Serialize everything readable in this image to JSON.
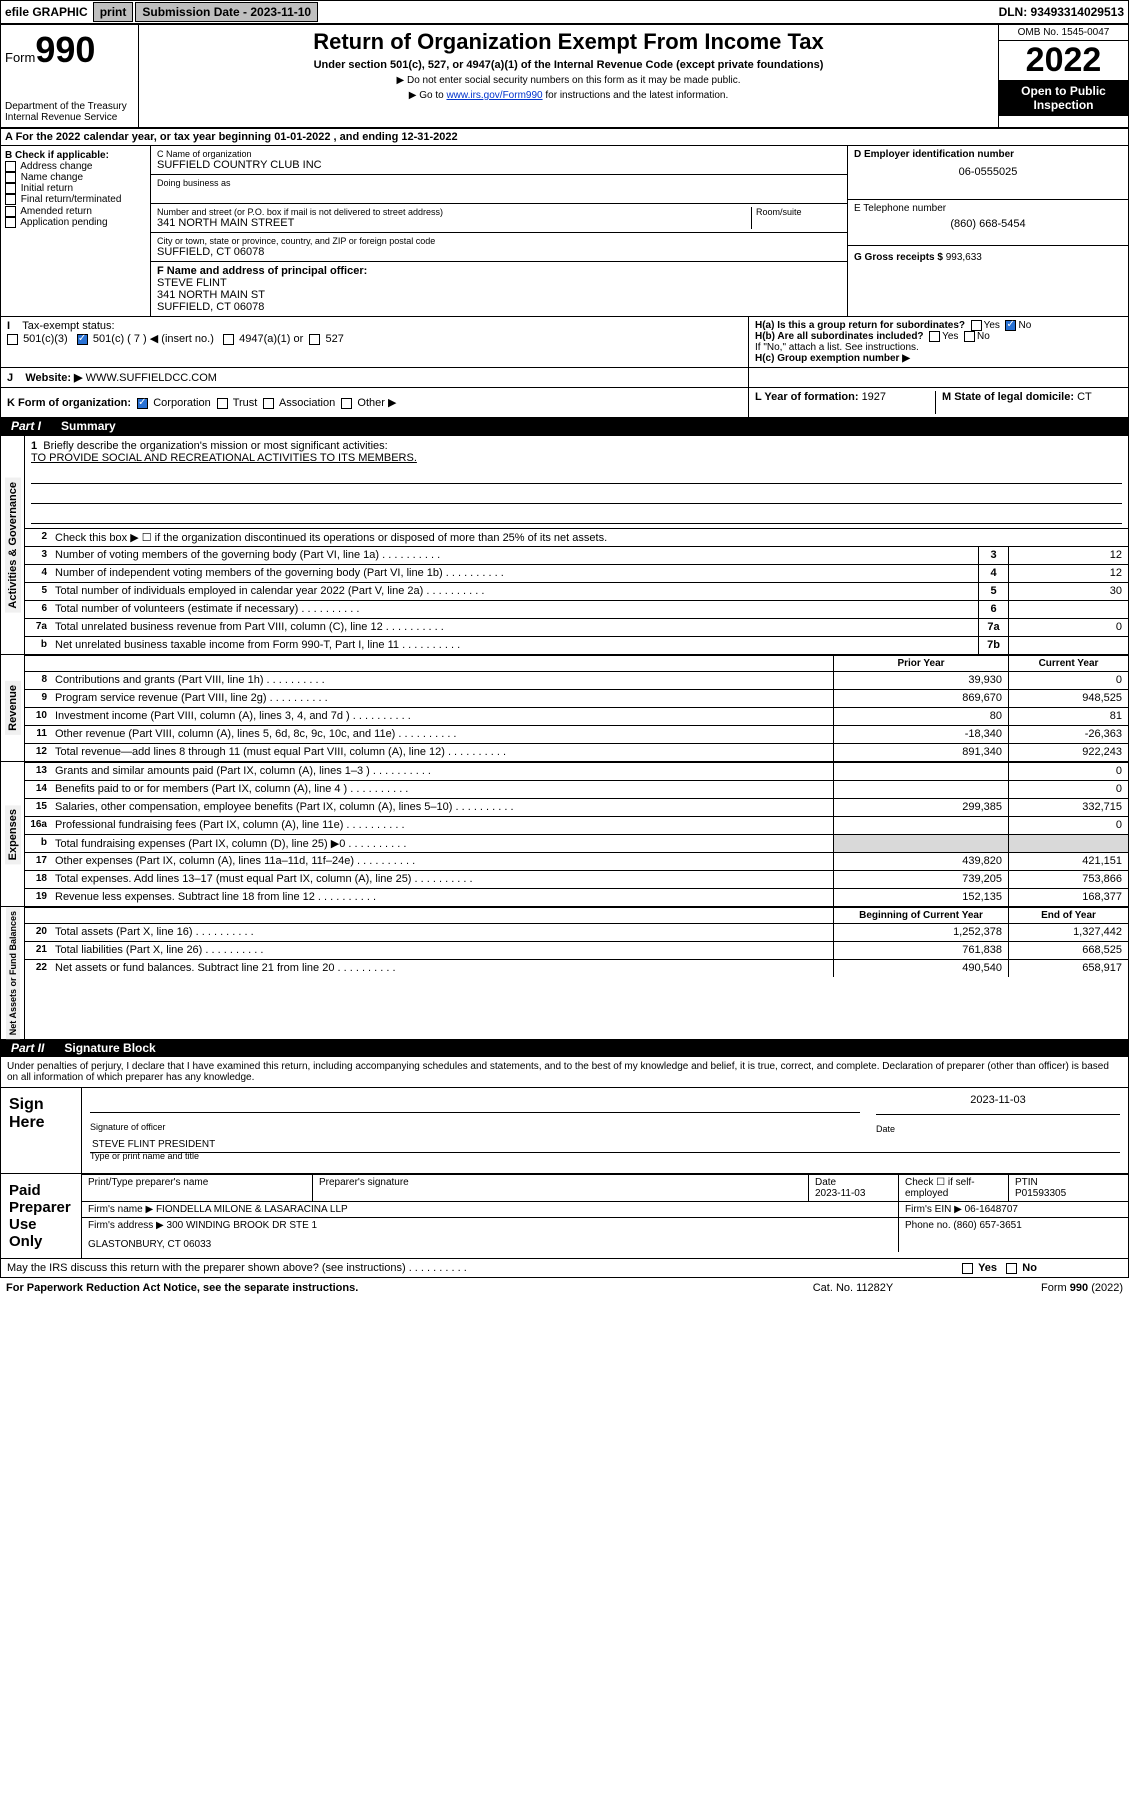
{
  "topbar": {
    "efile_label": "efile GRAPHIC",
    "print_btn": "print",
    "subdate_label": "Submission Date - 2023-11-10",
    "dln_label": "DLN: 93493314029513"
  },
  "header": {
    "form_prefix": "Form",
    "form_num": "990",
    "dept": "Department of the Treasury",
    "irs": "Internal Revenue Service",
    "title": "Return of Organization Exempt From Income Tax",
    "sub1": "Under section 501(c), 527, or 4947(a)(1) of the Internal Revenue Code (except private foundations)",
    "sub2": "▶ Do not enter social security numbers on this form as it may be made public.",
    "sub3_pre": "▶ Go to ",
    "sub3_link": "www.irs.gov/Form990",
    "sub3_post": " for instructions and the latest information.",
    "omb": "OMB No. 1545-0047",
    "year": "2022",
    "otp": "Open to Public Inspection"
  },
  "row_a": "A For the 2022 calendar year, or tax year beginning 01-01-2022    , and ending 12-31-2022",
  "col_b": {
    "hdr": "B Check if applicable:",
    "items": [
      "Address change",
      "Name change",
      "Initial return",
      "Final return/terminated",
      "Amended return",
      "Application pending"
    ]
  },
  "col_c": {
    "name_lbl": "C Name of organization",
    "name": "SUFFIELD COUNTRY CLUB INC",
    "dba_lbl": "Doing business as",
    "street_lbl": "Number and street (or P.O. box if mail is not delivered to street address)",
    "room_lbl": "Room/suite",
    "street": "341 NORTH MAIN STREET",
    "city_lbl": "City or town, state or province, country, and ZIP or foreign postal code",
    "city": "SUFFIELD, CT  06078",
    "f_lbl": "F Name and address of principal officer:",
    "f_name": "STEVE FLINT",
    "f_street": "341 NORTH MAIN ST",
    "f_city": "SUFFIELD, CT  06078"
  },
  "col_d": {
    "ein_lbl": "D Employer identification number",
    "ein": "06-0555025",
    "tel_lbl": "E Telephone number",
    "tel": "(860) 668-5454",
    "gross_lbl": "G Gross receipts $ ",
    "gross": "993,633"
  },
  "h": {
    "ha_q": "H(a)  Is this a group return for subordinates?",
    "hb_q": "H(b)  Are all subordinates included?",
    "ifno": "If \"No,\" attach a list. See instructions.",
    "hc": "H(c)  Group exemption number ▶",
    "yes": "Yes",
    "no": "No"
  },
  "checks": {
    "i_lbl": "Tax-exempt status:",
    "i_501c3": "501(c)(3)",
    "i_501c": "501(c) ( 7 ) ◀ (insert no.)",
    "i_4947": "4947(a)(1) or",
    "i_527": "527",
    "j_lbl": "Website: ▶",
    "j_val": "WWW.SUFFIELDCC.COM",
    "k_lbl": "K Form of organization:",
    "k_corp": "Corporation",
    "k_trust": "Trust",
    "k_assoc": "Association",
    "k_other": "Other ▶",
    "l_lbl": "L Year of formation: ",
    "l_val": "1927",
    "m_lbl": "M State of legal domicile: ",
    "m_val": "CT"
  },
  "part1": {
    "num": "Part I",
    "title": "Summary"
  },
  "brief": {
    "num": "1",
    "q": "Briefly describe the organization's mission or most significant activities:",
    "a": "TO PROVIDE SOCIAL AND RECREATIONAL ACTIVITIES TO ITS MEMBERS."
  },
  "line2": {
    "num": "2",
    "txt": "Check this box ▶ ☐  if the organization discontinued its operations or disposed of more than 25% of its net assets."
  },
  "gov_rows": [
    {
      "n": "3",
      "d": "Number of voting members of the governing body (Part VI, line 1a)",
      "c": "3",
      "v": "12"
    },
    {
      "n": "4",
      "d": "Number of independent voting members of the governing body (Part VI, line 1b)",
      "c": "4",
      "v": "12"
    },
    {
      "n": "5",
      "d": "Total number of individuals employed in calendar year 2022 (Part V, line 2a)",
      "c": "5",
      "v": "30"
    },
    {
      "n": "6",
      "d": "Total number of volunteers (estimate if necessary)",
      "c": "6",
      "v": ""
    },
    {
      "n": "7a",
      "d": "Total unrelated business revenue from Part VIII, column (C), line 12",
      "c": "7a",
      "v": "0"
    },
    {
      "n": "b",
      "d": "Net unrelated business taxable income from Form 990-T, Part I, line 11",
      "c": "7b",
      "v": ""
    }
  ],
  "rev_hdr": {
    "a": "Prior Year",
    "b": "Current Year"
  },
  "rev_rows": [
    {
      "n": "8",
      "d": "Contributions and grants (Part VIII, line 1h)",
      "a": "39,930",
      "b": "0"
    },
    {
      "n": "9",
      "d": "Program service revenue (Part VIII, line 2g)",
      "a": "869,670",
      "b": "948,525"
    },
    {
      "n": "10",
      "d": "Investment income (Part VIII, column (A), lines 3, 4, and 7d )",
      "a": "80",
      "b": "81"
    },
    {
      "n": "11",
      "d": "Other revenue (Part VIII, column (A), lines 5, 6d, 8c, 9c, 10c, and 11e)",
      "a": "-18,340",
      "b": "-26,363"
    },
    {
      "n": "12",
      "d": "Total revenue—add lines 8 through 11 (must equal Part VIII, column (A), line 12)",
      "a": "891,340",
      "b": "922,243"
    }
  ],
  "exp_rows": [
    {
      "n": "13",
      "d": "Grants and similar amounts paid (Part IX, column (A), lines 1–3 )",
      "a": "",
      "b": "0"
    },
    {
      "n": "14",
      "d": "Benefits paid to or for members (Part IX, column (A), line 4 )",
      "a": "",
      "b": "0"
    },
    {
      "n": "15",
      "d": "Salaries, other compensation, employee benefits (Part IX, column (A), lines 5–10)",
      "a": "299,385",
      "b": "332,715"
    },
    {
      "n": "16a",
      "d": "Professional fundraising fees (Part IX, column (A), line 11e)",
      "a": "",
      "b": "0"
    },
    {
      "n": "b",
      "d": "Total fundraising expenses (Part IX, column (D), line 25) ▶0",
      "a": "shade",
      "b": "shade"
    },
    {
      "n": "17",
      "d": "Other expenses (Part IX, column (A), lines 11a–11d, 11f–24e)",
      "a": "439,820",
      "b": "421,151"
    },
    {
      "n": "18",
      "d": "Total expenses. Add lines 13–17 (must equal Part IX, column (A), line 25)",
      "a": "739,205",
      "b": "753,866"
    },
    {
      "n": "19",
      "d": "Revenue less expenses. Subtract line 18 from line 12",
      "a": "152,135",
      "b": "168,377"
    }
  ],
  "net_hdr": {
    "a": "Beginning of Current Year",
    "b": "End of Year"
  },
  "net_rows": [
    {
      "n": "20",
      "d": "Total assets (Part X, line 16)",
      "a": "1,252,378",
      "b": "1,327,442"
    },
    {
      "n": "21",
      "d": "Total liabilities (Part X, line 26)",
      "a": "761,838",
      "b": "668,525"
    },
    {
      "n": "22",
      "d": "Net assets or fund balances. Subtract line 21 from line 20",
      "a": "490,540",
      "b": "658,917"
    }
  ],
  "part2": {
    "num": "Part II",
    "title": "Signature Block"
  },
  "penalties": "Under penalties of perjury, I declare that I have examined this return, including accompanying schedules and statements, and to the best of my knowledge and belief, it is true, correct, and complete. Declaration of preparer (other than officer) is based on all information of which preparer has any knowledge.",
  "sign": {
    "here": "Sign Here",
    "sig_officer": "Signature of officer",
    "date": "Date",
    "date_val": "2023-11-03",
    "name": "STEVE FLINT  PRESIDENT",
    "name_lbl": "Type or print name and title"
  },
  "paid": {
    "label": "Paid Preparer Use Only",
    "r1": {
      "c1": "Print/Type preparer's name",
      "c2": "Preparer's signature",
      "c3": "Date",
      "c3v": "2023-11-03",
      "c4": "Check ☐ if self-employed",
      "c5": "PTIN",
      "c5v": "P01593305"
    },
    "r2": {
      "c1": "Firm's name      ▶",
      "c1v": "FIONDELLA MILONE & LASARACINA LLP",
      "c2": "Firm's EIN ▶",
      "c2v": "06-1648707"
    },
    "r3": {
      "c1": "Firm's address ▶",
      "c1v": "300 WINDING BROOK DR STE 1",
      "c2": "Phone no. ",
      "c2v": "(860) 657-3651"
    },
    "r3b": "GLASTONBURY, CT  06033"
  },
  "discuss": "May the IRS discuss this return with the preparer shown above? (see instructions)",
  "footer": {
    "left": "For Paperwork Reduction Act Notice, see the separate instructions.",
    "mid": "Cat. No. 11282Y",
    "right_pre": "Form ",
    "right_b": "990",
    "right_post": " (2022)"
  },
  "tabs": {
    "gov": "Activities & Governance",
    "rev": "Revenue",
    "exp": "Expenses",
    "net": "Net Assets or Fund Balances"
  }
}
